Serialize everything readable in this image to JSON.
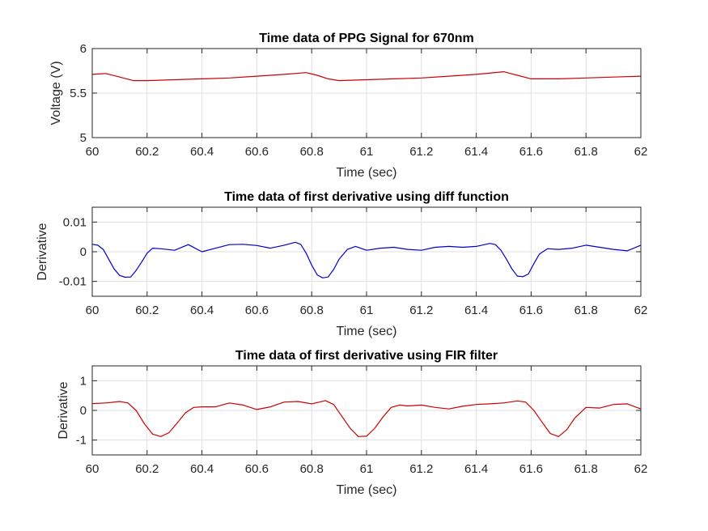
{
  "chart_data": [
    {
      "type": "line",
      "title": "Time data of PPG Signal for 670nm",
      "xlabel": "Time (sec)",
      "ylabel": "Voltage (V)",
      "xlim": [
        60,
        62
      ],
      "ylim": [
        5,
        6
      ],
      "xticks": [
        "60",
        "60.2",
        "60.4",
        "60.6",
        "60.8",
        "61",
        "61.2",
        "61.4",
        "61.6",
        "61.8",
        "62"
      ],
      "yticks": [
        "5",
        "5.5",
        "6"
      ],
      "grid": true,
      "color": "#cc0000",
      "x": [
        60.0,
        60.05,
        60.1,
        60.15,
        60.2,
        60.3,
        60.4,
        60.5,
        60.6,
        60.7,
        60.78,
        60.82,
        60.86,
        60.9,
        61.0,
        61.1,
        61.2,
        61.3,
        61.4,
        61.5,
        61.55,
        61.6,
        61.7,
        61.8,
        61.9,
        62.0
      ],
      "y": [
        5.71,
        5.72,
        5.68,
        5.64,
        5.64,
        5.65,
        5.66,
        5.67,
        5.69,
        5.71,
        5.73,
        5.7,
        5.66,
        5.64,
        5.65,
        5.66,
        5.67,
        5.69,
        5.71,
        5.74,
        5.7,
        5.66,
        5.66,
        5.67,
        5.68,
        5.69
      ]
    },
    {
      "type": "line",
      "title": "Time data of first derivative using diff function",
      "xlabel": "Time (sec)",
      "ylabel": "Derivative",
      "xlim": [
        60,
        62
      ],
      "ylim": [
        -0.015,
        0.015
      ],
      "xticks": [
        "60",
        "60.2",
        "60.4",
        "60.6",
        "60.8",
        "61",
        "61.2",
        "61.4",
        "61.6",
        "61.8",
        "62"
      ],
      "yticks": [
        "-0.01",
        "0",
        "0.01"
      ],
      "grid": true,
      "color": "#0000cc",
      "x": [
        60.0,
        60.02,
        60.04,
        60.06,
        60.08,
        60.1,
        60.12,
        60.14,
        60.16,
        60.18,
        60.2,
        60.22,
        60.25,
        60.3,
        60.35,
        60.4,
        60.45,
        60.5,
        60.55,
        60.6,
        60.65,
        60.7,
        60.74,
        60.76,
        60.78,
        60.8,
        60.82,
        60.84,
        60.86,
        60.88,
        60.9,
        60.93,
        60.96,
        61.0,
        61.05,
        61.1,
        61.15,
        61.2,
        61.25,
        61.3,
        61.35,
        61.4,
        61.45,
        61.47,
        61.49,
        61.51,
        61.53,
        61.55,
        61.57,
        61.59,
        61.61,
        61.63,
        61.66,
        61.7,
        61.75,
        61.8,
        61.85,
        61.9,
        61.95,
        62.0
      ],
      "y": [
        0.0025,
        0.0022,
        0.0008,
        -0.0025,
        -0.0058,
        -0.008,
        -0.0086,
        -0.0085,
        -0.0063,
        -0.0035,
        -0.0005,
        0.0012,
        0.001,
        0.0005,
        0.0024,
        0.0,
        0.0012,
        0.0024,
        0.0025,
        0.0021,
        0.0012,
        0.0022,
        0.0032,
        0.0025,
        -0.0005,
        -0.0045,
        -0.0078,
        -0.0088,
        -0.0085,
        -0.006,
        -0.0025,
        0.0008,
        0.0018,
        0.0005,
        0.0012,
        0.0015,
        0.0008,
        0.0005,
        0.0015,
        0.0018,
        0.0015,
        0.0018,
        0.0028,
        0.0024,
        0.0005,
        -0.0025,
        -0.0058,
        -0.0082,
        -0.0084,
        -0.0075,
        -0.004,
        -0.0008,
        0.001,
        0.0008,
        0.0012,
        0.0022,
        0.0015,
        0.0008,
        0.0003,
        0.0022
      ]
    },
    {
      "type": "line",
      "title": "Time data of first derivative using FIR filter",
      "xlabel": "Time (sec)",
      "ylabel": "Derivative",
      "xlim": [
        60,
        62
      ],
      "ylim": [
        -1.5,
        1.5
      ],
      "xticks": [
        "60",
        "60.2",
        "60.4",
        "60.6",
        "60.8",
        "61",
        "61.2",
        "61.4",
        "61.6",
        "61.8",
        "62"
      ],
      "yticks": [
        "-1",
        "0",
        "1"
      ],
      "grid": true,
      "color": "#cc0000",
      "x": [
        60.0,
        60.05,
        60.1,
        60.13,
        60.16,
        60.19,
        60.22,
        60.25,
        60.28,
        60.31,
        60.34,
        60.37,
        60.4,
        60.45,
        60.5,
        60.55,
        60.6,
        60.65,
        60.7,
        60.75,
        60.8,
        60.85,
        60.88,
        60.91,
        60.94,
        60.97,
        61.0,
        61.03,
        61.06,
        61.09,
        61.12,
        61.15,
        61.2,
        61.25,
        61.3,
        61.35,
        61.4,
        61.45,
        61.5,
        61.55,
        61.58,
        61.61,
        61.64,
        61.67,
        61.7,
        61.73,
        61.76,
        61.8,
        61.85,
        61.9,
        61.95,
        62.0
      ],
      "y": [
        0.23,
        0.25,
        0.3,
        0.25,
        0.0,
        -0.45,
        -0.8,
        -0.88,
        -0.75,
        -0.42,
        -0.08,
        0.1,
        0.12,
        0.12,
        0.25,
        0.18,
        0.03,
        0.12,
        0.28,
        0.3,
        0.22,
        0.33,
        0.2,
        -0.2,
        -0.6,
        -0.88,
        -0.87,
        -0.6,
        -0.22,
        0.1,
        0.18,
        0.15,
        0.18,
        0.1,
        0.05,
        0.14,
        0.2,
        0.22,
        0.25,
        0.32,
        0.28,
        0.0,
        -0.4,
        -0.78,
        -0.88,
        -0.65,
        -0.25,
        0.1,
        0.08,
        0.2,
        0.22,
        0.05
      ]
    }
  ]
}
